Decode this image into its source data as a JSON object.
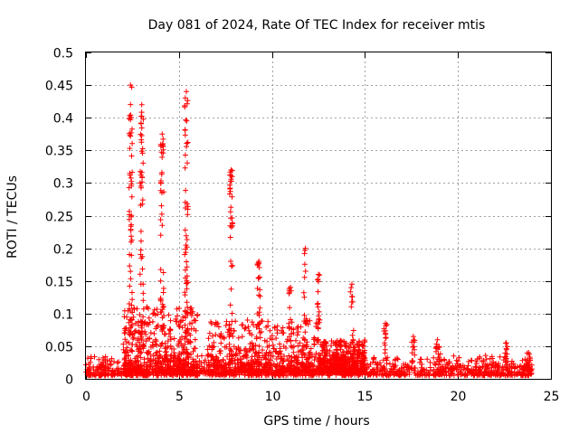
{
  "chart_data": {
    "type": "scatter",
    "title": "Day 081 of 2024, Rate Of TEC Index for receiver mtis",
    "xlabel": "GPS time / hours",
    "ylabel": "ROTI / TECUs",
    "xlim": [
      0,
      25
    ],
    "ylim": [
      0,
      0.5
    ],
    "xticks": [
      0,
      5,
      10,
      15,
      20,
      25
    ],
    "xtick_labels": [
      "0",
      "5",
      "10",
      "15",
      "20",
      "25"
    ],
    "yticks": [
      0,
      0.05,
      0.1,
      0.15,
      0.2,
      0.25,
      0.3,
      0.35,
      0.4,
      0.45,
      0.5
    ],
    "ytick_labels": [
      "0",
      "0.05",
      "0.1",
      "0.15",
      "0.2",
      "0.25",
      "0.3",
      "0.35",
      "0.4",
      "0.45",
      "0.5"
    ],
    "grid": true,
    "marker": "+",
    "marker_color": "#ff0000",
    "baseline": {
      "x_range": [
        0,
        24
      ],
      "typical_max": 0.03,
      "description_values": [
        0.005,
        0.03
      ]
    },
    "spikes": [
      {
        "x": 2.4,
        "peak": 0.45
      },
      {
        "x": 3.0,
        "peak": 0.42
      },
      {
        "x": 4.1,
        "peak": 0.375
      },
      {
        "x": 5.4,
        "peak": 0.44
      },
      {
        "x": 7.8,
        "peak": 0.32
      },
      {
        "x": 9.3,
        "peak": 0.18
      },
      {
        "x": 11.0,
        "peak": 0.14
      },
      {
        "x": 11.8,
        "peak": 0.2
      },
      {
        "x": 12.5,
        "peak": 0.16
      },
      {
        "x": 14.3,
        "peak": 0.145
      },
      {
        "x": 16.1,
        "peak": 0.085
      },
      {
        "x": 17.6,
        "peak": 0.065
      },
      {
        "x": 18.9,
        "peak": 0.06
      },
      {
        "x": 22.6,
        "peak": 0.055
      },
      {
        "x": 23.8,
        "peak": 0.04
      }
    ],
    "bursts": [
      {
        "x_range": [
          2.0,
          6.0
        ],
        "max": 0.1
      },
      {
        "x_range": [
          6.5,
          12.5
        ],
        "max": 0.08
      },
      {
        "x_range": [
          12.5,
          15.0
        ],
        "max": 0.05
      }
    ]
  }
}
